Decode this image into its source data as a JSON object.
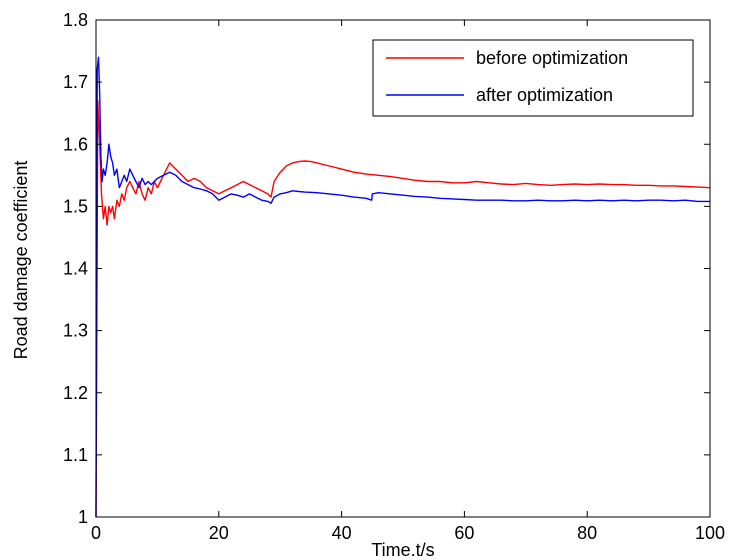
{
  "chart_data": {
    "type": "line",
    "title": "",
    "xlabel": "Time.t/s",
    "ylabel": "Road damage coefficient",
    "xlim": [
      0,
      100
    ],
    "ylim": [
      1,
      1.8
    ],
    "xticks": [
      0,
      20,
      40,
      60,
      80,
      100
    ],
    "xtick_labels": [
      "0",
      "20",
      "40",
      "60",
      "80",
      "100"
    ],
    "yticks": [
      1,
      1.1,
      1.2,
      1.3,
      1.4,
      1.5,
      1.6,
      1.7,
      1.8
    ],
    "ytick_labels": [
      "1",
      "1.1",
      "1.2",
      "1.3",
      "1.4",
      "1.5",
      "1.6",
      "1.7",
      "1.8"
    ],
    "grid": false,
    "legend_position": "top-right",
    "series": [
      {
        "name": "before optimization",
        "color": "#ff0000",
        "x": [
          0,
          0.3,
          0.6,
          0.9,
          1.2,
          1.5,
          1.8,
          2.1,
          2.4,
          2.7,
          3.0,
          3.4,
          3.8,
          4.2,
          4.6,
          5.0,
          5.5,
          6.0,
          6.5,
          7.0,
          7.5,
          8.0,
          8.5,
          9.0,
          9.5,
          10.0,
          10.5,
          11.0,
          11.5,
          12.0,
          13,
          14,
          15,
          16,
          17,
          18,
          19,
          20,
          21,
          22,
          23,
          24,
          25,
          26,
          27,
          28,
          28.5,
          29,
          30,
          31,
          32,
          33,
          34,
          35,
          36,
          38,
          40,
          42,
          44,
          46,
          48,
          50,
          52,
          54,
          56,
          58,
          60,
          62,
          64,
          66,
          68,
          70,
          72,
          74,
          76,
          78,
          80,
          82,
          84,
          86,
          88,
          90,
          92,
          94,
          96,
          98,
          100
        ],
        "y": [
          1.0,
          1.67,
          1.6,
          1.52,
          1.48,
          1.5,
          1.47,
          1.5,
          1.49,
          1.5,
          1.48,
          1.51,
          1.5,
          1.52,
          1.51,
          1.53,
          1.54,
          1.53,
          1.52,
          1.54,
          1.52,
          1.51,
          1.53,
          1.52,
          1.54,
          1.53,
          1.54,
          1.55,
          1.56,
          1.57,
          1.56,
          1.55,
          1.54,
          1.545,
          1.54,
          1.53,
          1.525,
          1.52,
          1.525,
          1.53,
          1.535,
          1.54,
          1.535,
          1.53,
          1.525,
          1.52,
          1.515,
          1.54,
          1.555,
          1.565,
          1.57,
          1.572,
          1.573,
          1.572,
          1.57,
          1.565,
          1.56,
          1.555,
          1.552,
          1.55,
          1.548,
          1.545,
          1.542,
          1.54,
          1.54,
          1.538,
          1.538,
          1.54,
          1.538,
          1.536,
          1.535,
          1.537,
          1.535,
          1.534,
          1.535,
          1.536,
          1.535,
          1.536,
          1.535,
          1.535,
          1.534,
          1.534,
          1.533,
          1.533,
          1.532,
          1.531,
          1.53
        ]
      },
      {
        "name": "after optimization",
        "color": "#0000ff",
        "x": [
          0,
          0.2,
          0.4,
          0.6,
          0.8,
          1.0,
          1.2,
          1.5,
          1.8,
          2.1,
          2.4,
          2.7,
          3.0,
          3.4,
          3.8,
          4.2,
          4.6,
          5.0,
          5.5,
          6.0,
          6.5,
          7.0,
          7.5,
          8.0,
          8.5,
          9.0,
          9.5,
          10.0,
          11.0,
          12.0,
          13,
          14,
          15,
          16,
          17,
          18,
          19,
          20,
          21,
          22,
          23,
          24,
          25,
          26,
          27,
          28,
          28.5,
          29,
          30,
          31,
          32,
          33,
          34,
          36,
          38,
          40,
          42,
          44,
          44.9,
          45,
          46,
          48,
          50,
          52,
          54,
          56,
          58,
          60,
          62,
          64,
          66,
          68,
          70,
          72,
          74,
          76,
          78,
          80,
          82,
          84,
          86,
          88,
          90,
          92,
          94,
          96,
          98,
          100
        ],
        "y": [
          1.0,
          1.72,
          1.74,
          1.68,
          1.58,
          1.54,
          1.56,
          1.55,
          1.57,
          1.6,
          1.58,
          1.57,
          1.55,
          1.56,
          1.53,
          1.54,
          1.55,
          1.54,
          1.56,
          1.55,
          1.54,
          1.53,
          1.545,
          1.535,
          1.54,
          1.535,
          1.54,
          1.545,
          1.55,
          1.555,
          1.55,
          1.54,
          1.535,
          1.53,
          1.528,
          1.525,
          1.52,
          1.51,
          1.515,
          1.52,
          1.518,
          1.515,
          1.52,
          1.515,
          1.51,
          1.508,
          1.505,
          1.515,
          1.52,
          1.522,
          1.525,
          1.524,
          1.523,
          1.522,
          1.52,
          1.518,
          1.515,
          1.513,
          1.51,
          1.52,
          1.522,
          1.52,
          1.518,
          1.516,
          1.515,
          1.513,
          1.512,
          1.511,
          1.51,
          1.51,
          1.51,
          1.509,
          1.509,
          1.51,
          1.509,
          1.509,
          1.51,
          1.509,
          1.51,
          1.509,
          1.51,
          1.509,
          1.51,
          1.51,
          1.509,
          1.51,
          1.508,
          1.508
        ]
      }
    ]
  }
}
